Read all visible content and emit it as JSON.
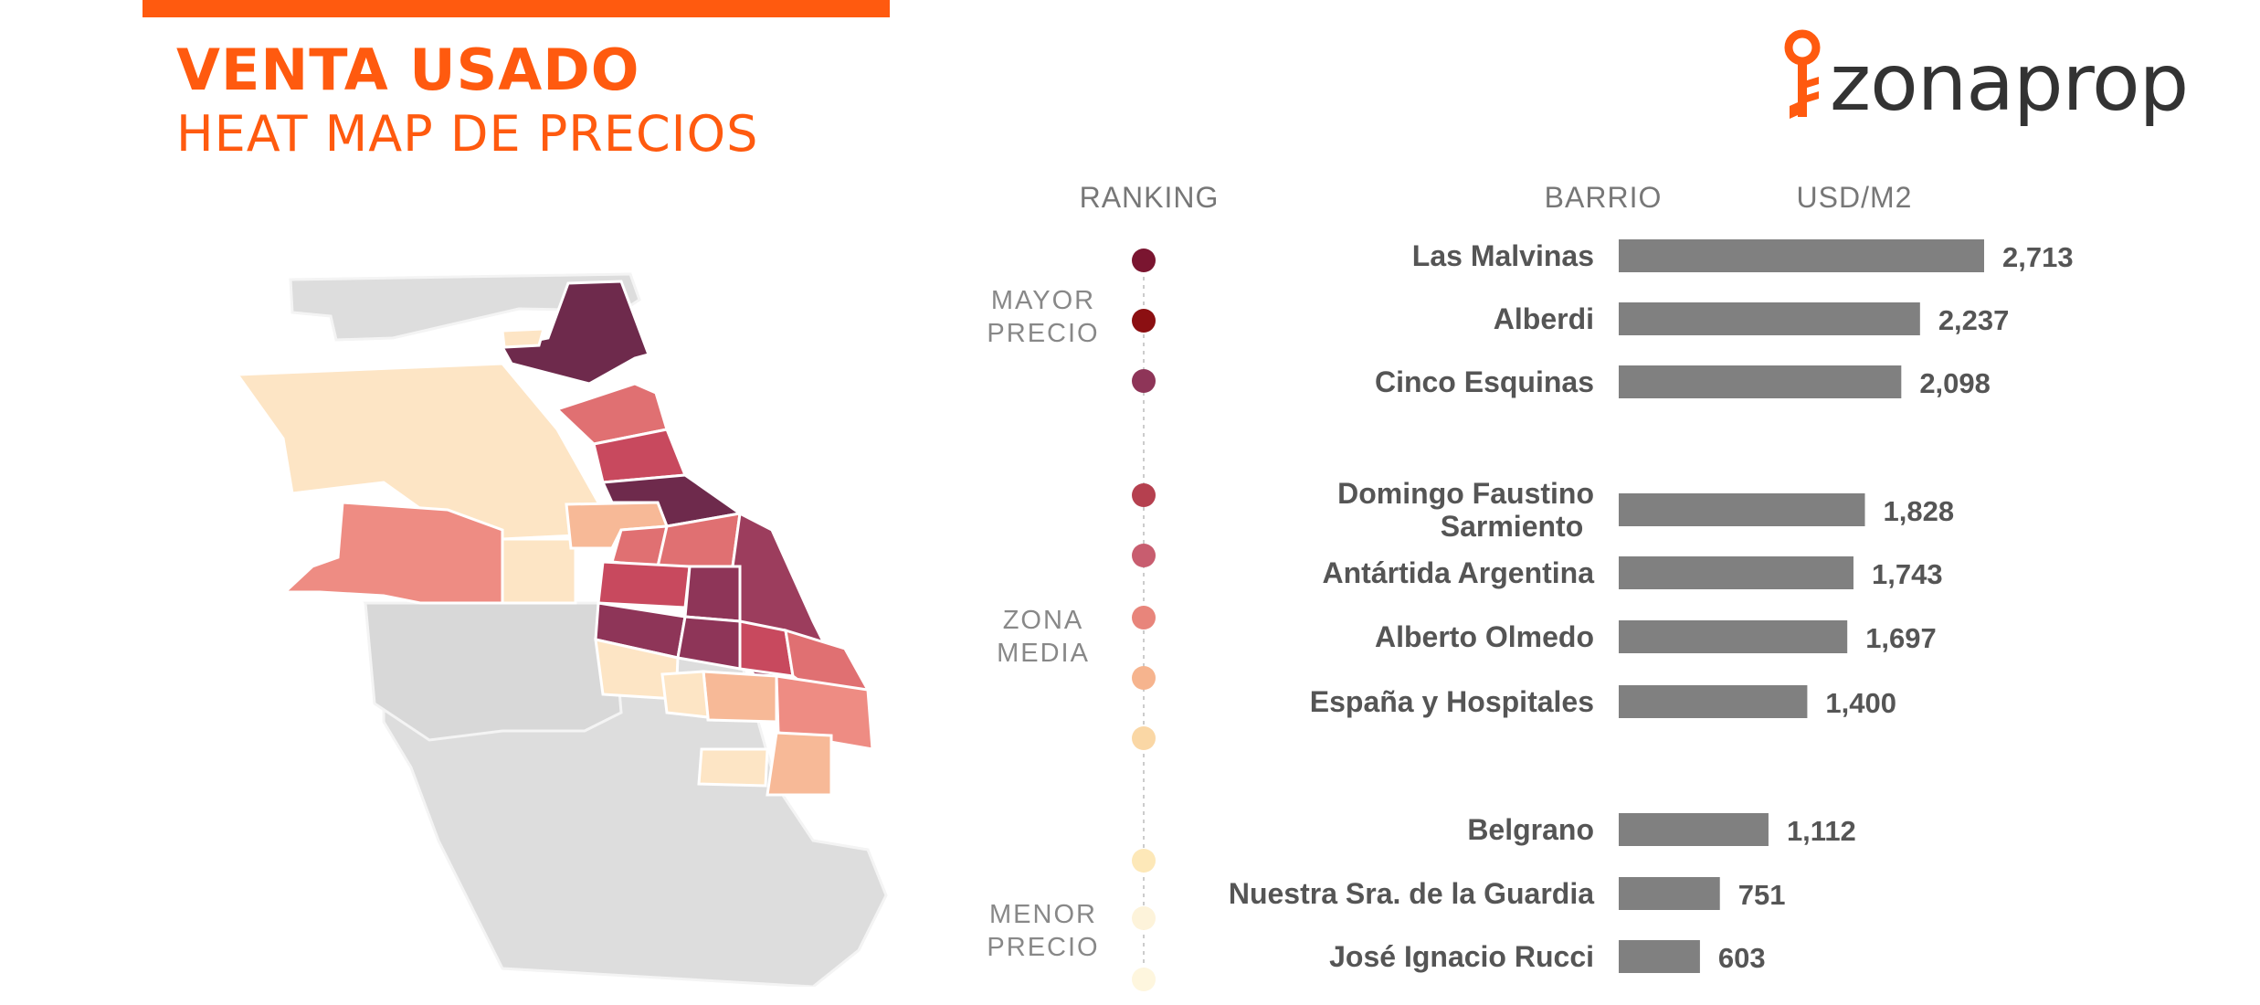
{
  "header": {
    "title": "VENTA USADO",
    "subtitle": "HEAT MAP DE PRECIOS"
  },
  "logo": {
    "text": "zonaprop",
    "icon": "key-icon",
    "icon_color": "#ff5a0f"
  },
  "colors": {
    "accent": "#ff5a0f",
    "bar": "#808080",
    "label": "#555555",
    "zone_label": "#888888",
    "map_base": "#dddddd"
  },
  "chart_data": {
    "type": "bar",
    "orientation": "horizontal",
    "headers": {
      "ranking": "RANKING",
      "barrio": "BARRIO",
      "value": "USD/M2"
    },
    "zones": [
      {
        "label": [
          "MAYOR",
          "PRECIO"
        ]
      },
      {
        "label": [
          "ZONA",
          "MEDIA"
        ]
      },
      {
        "label": [
          "MENOR",
          "PRECIO"
        ]
      }
    ],
    "ranking_colors": [
      "#7a1530",
      "#8b0f12",
      "#8e3558",
      "#b5404f",
      "#c85d6f",
      "#e8857b",
      "#f6b48e",
      "#fad7a5",
      "#fde8b8",
      "#fdf3da",
      "#fef6de"
    ],
    "categories": [
      "Las Malvinas",
      "Alberdi",
      "Cinco Esquinas",
      "Domingo Faustino Sarmiento",
      "Antártida Argentina",
      "Alberto Olmedo",
      "España y Hospitales",
      "Belgrano",
      "Nuestra Sra. de la Guardia",
      "José Ignacio Rucci"
    ],
    "category_lines": [
      [
        "Las Malvinas"
      ],
      [
        "Alberdi"
      ],
      [
        "Cinco Esquinas"
      ],
      [
        "Domingo Faustino",
        "Sarmiento"
      ],
      [
        "Antártida Argentina"
      ],
      [
        "Alberto Olmedo"
      ],
      [
        "España y Hospitales"
      ],
      [
        "Belgrano"
      ],
      [
        "Nuestra Sra. de la Guardia"
      ],
      [
        "José Ignacio Rucci"
      ]
    ],
    "values": [
      2713,
      2237,
      2098,
      1828,
      1743,
      1697,
      1400,
      1112,
      751,
      603
    ],
    "value_labels": [
      "2,713",
      "2,237",
      "2,098",
      "1,828",
      "1,743",
      "1,697",
      "1,400",
      "1,112",
      "751",
      "603"
    ]
  }
}
